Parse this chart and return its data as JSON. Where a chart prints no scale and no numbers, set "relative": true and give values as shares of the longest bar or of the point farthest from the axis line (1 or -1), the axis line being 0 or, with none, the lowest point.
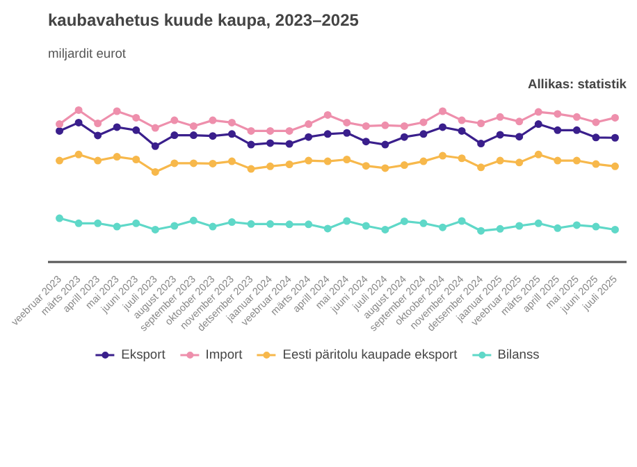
{
  "chart_data": {
    "type": "line",
    "title": "kaubavahetus kuude kaupa, 2023–2025",
    "subtitle": "miljardit eurot",
    "annotations": [
      "Allikas: statistik"
    ],
    "relative": true,
    "marker": "circle",
    "legend": "bottom",
    "categories": [
      "veebruar 2023",
      "märts 2023",
      "aprill 2023",
      "mai 2023",
      "juuni 2023",
      "juuli 2023",
      "august 2023",
      "september 2023",
      "oktoober 2023",
      "november 2023",
      "detsember 2023",
      "jaanuar 2024",
      "veebruar 2024",
      "märts 2024",
      "aprill 2024",
      "mai 2024",
      "juuni 2024",
      "juuli 2024",
      "august 2024",
      "september 2024",
      "oktoober 2024",
      "november 2024",
      "detsember 2024",
      "jaanuar 2025",
      "veebruar 2025",
      "märts 2025",
      "aprill 2025",
      "mai 2025",
      "juuni 2025",
      "juuli 2025"
    ],
    "series": [
      {
        "name": "Eksport",
        "color": "#3a1f8c",
        "values": [
          0.863,
          0.918,
          0.833,
          0.888,
          0.868,
          0.763,
          0.835,
          0.835,
          0.83,
          0.843,
          0.773,
          0.783,
          0.778,
          0.823,
          0.843,
          0.85,
          0.793,
          0.773,
          0.823,
          0.843,
          0.888,
          0.863,
          0.78,
          0.838,
          0.825,
          0.908,
          0.868,
          0.868,
          0.82,
          0.818
        ]
      },
      {
        "name": "Import",
        "color": "#ee8fac",
        "values": [
          0.908,
          1.0,
          0.913,
          0.993,
          0.95,
          0.883,
          0.933,
          0.895,
          0.933,
          0.918,
          0.863,
          0.863,
          0.863,
          0.908,
          0.968,
          0.918,
          0.895,
          0.9,
          0.895,
          0.92,
          0.993,
          0.933,
          0.913,
          0.955,
          0.925,
          0.988,
          0.975,
          0.955,
          0.92,
          0.95
        ]
      },
      {
        "name": "Eesti päritolu kaupade eksport",
        "color": "#f7b84b",
        "values": [
          0.668,
          0.708,
          0.668,
          0.693,
          0.675,
          0.593,
          0.65,
          0.65,
          0.648,
          0.663,
          0.613,
          0.63,
          0.643,
          0.668,
          0.663,
          0.675,
          0.633,
          0.618,
          0.638,
          0.663,
          0.7,
          0.683,
          0.623,
          0.668,
          0.655,
          0.708,
          0.668,
          0.668,
          0.645,
          0.63
        ]
      },
      {
        "name": "Bilanss",
        "color": "#5fd8c8",
        "values": [
          0.288,
          0.255,
          0.255,
          0.233,
          0.255,
          0.213,
          0.238,
          0.273,
          0.233,
          0.263,
          0.25,
          0.25,
          0.248,
          0.248,
          0.22,
          0.27,
          0.238,
          0.213,
          0.268,
          0.255,
          0.228,
          0.27,
          0.205,
          0.218,
          0.238,
          0.255,
          0.223,
          0.243,
          0.233,
          0.213
        ]
      }
    ]
  }
}
